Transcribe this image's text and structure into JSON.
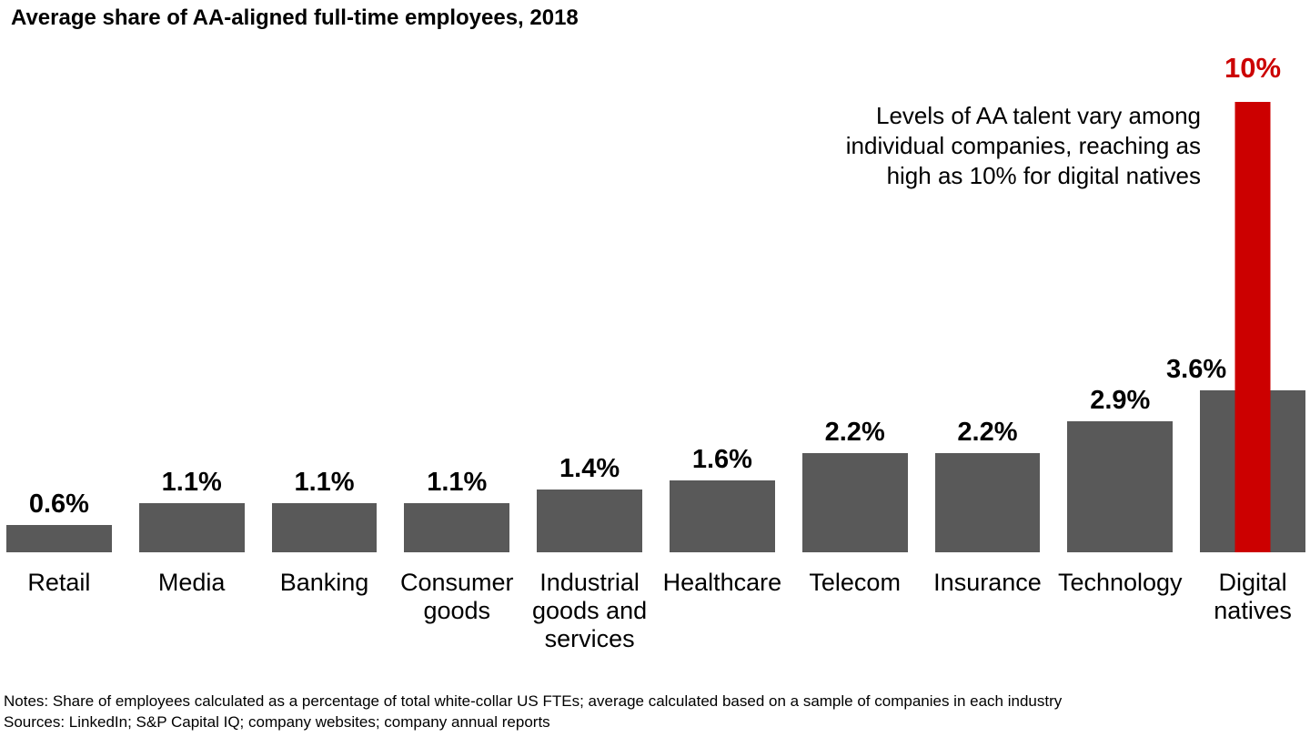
{
  "title": "Average share of AA-aligned full-time employees, 2018",
  "annotation": {
    "text": "Levels of AA talent vary among\nindividual companies, reaching as\nhigh as 10% for digital natives"
  },
  "notes": {
    "line1": "Notes: Share of employees calculated as a percentage of total white-collar US FTEs; average calculated based on a sample of companies in each industry",
    "line2": "Sources: LinkedIn; S&P Capital IQ; company websites; company annual reports"
  },
  "colors": {
    "bar": "#595959",
    "highlight": "#cc0000",
    "text": "#000000",
    "background": "#ffffff"
  },
  "chart_data": {
    "type": "bar",
    "title": "Average share of AA-aligned full-time employees, 2018",
    "unit": "%",
    "categories": [
      "Retail",
      "Media",
      "Banking",
      "Consumer goods",
      "Industrial goods and services",
      "Healthcare",
      "Telecom",
      "Insurance",
      "Technology",
      "Digital natives"
    ],
    "category_labels": [
      "Retail",
      "Media",
      "Banking",
      "Consumer\ngoods",
      "Industrial\ngoods and\nservices",
      "Healthcare",
      "Telecom",
      "Insurance",
      "Technology",
      "Digital\nnatives"
    ],
    "values": [
      0.6,
      1.1,
      1.1,
      1.1,
      1.4,
      1.6,
      2.2,
      2.2,
      2.9,
      3.6
    ],
    "value_labels": [
      "0.6%",
      "1.1%",
      "1.1%",
      "1.1%",
      "1.4%",
      "1.6%",
      "2.2%",
      "2.2%",
      "2.9%",
      "3.6%"
    ],
    "overlay": {
      "category": "Digital natives",
      "value": 10,
      "label": "10%",
      "color": "#cc0000"
    },
    "ylim": [
      0,
      10.5
    ],
    "xlabel": "",
    "ylabel": "",
    "axis_visible": false,
    "grid": false,
    "legend": false
  }
}
